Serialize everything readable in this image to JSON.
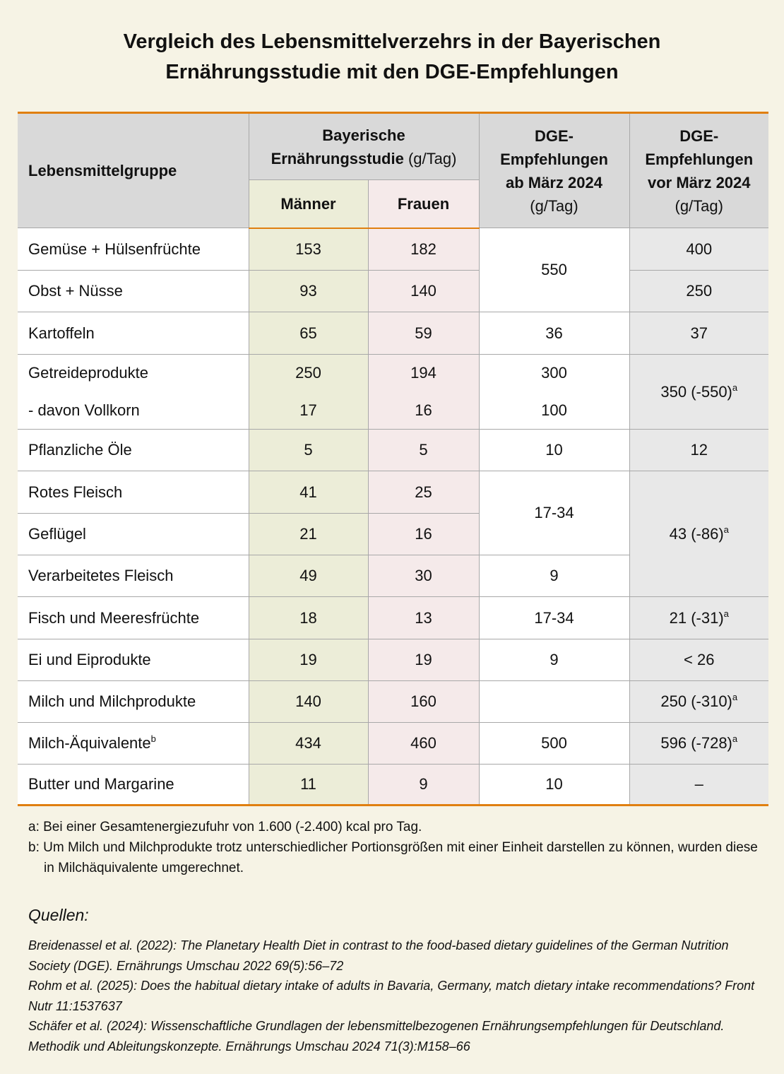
{
  "title_line1": "Vergleich des Lebensmittelverzehrs in der Bayerischen",
  "title_line2": "Ernährungsstudie mit den DGE-Empfehlungen",
  "colors": {
    "background": "#f6f3e5",
    "accent": "#e07f10",
    "header": "#d9d9d9",
    "maenner": "#ecedd8",
    "frauen": "#f5eaea",
    "dge_vor": "#e8e8e8"
  },
  "header": {
    "group": "Lebensmittelgruppe",
    "study_line1": "Bayerische",
    "study_line2": "Ernährungsstudie",
    "study_unit": "(g/Tag)",
    "maenner": "Männer",
    "frauen": "Frauen",
    "dge_ab_1": "DGE-",
    "dge_ab_2": "Empfehlungen",
    "dge_ab_3": "ab März 2024",
    "dge_ab_unit": "(g/Tag)",
    "dge_vor_1": "DGE-",
    "dge_vor_2": "Empfehlungen",
    "dge_vor_3": "vor März 2024",
    "dge_vor_unit": "(g/Tag)"
  },
  "rows": [
    {
      "label": "Gemüse + Hülsenfrüchte",
      "m": "153",
      "f": "182",
      "ab": "550",
      "vor": "400"
    },
    {
      "label": "Obst + Nüsse",
      "m": "93",
      "f": "140",
      "vor": "250"
    },
    {
      "label": "Kartoffeln",
      "m": "65",
      "f": "59",
      "ab": "36",
      "vor": "37"
    },
    {
      "label": "Getreideprodukte",
      "m": "250",
      "f": "194",
      "ab": "300",
      "vor": "350 (-550)",
      "vor_sup": "a"
    },
    {
      "label": "- davon Vollkorn",
      "m": "17",
      "f": "16",
      "ab": "100"
    },
    {
      "label": "Pflanzliche Öle",
      "m": "5",
      "f": "5",
      "ab": "10",
      "vor": "12"
    },
    {
      "label": "Rotes Fleisch",
      "m": "41",
      "f": "25",
      "ab": "17-34",
      "vor": "43 (-86)",
      "vor_sup": "a"
    },
    {
      "label": "Geflügel",
      "m": "21",
      "f": "16"
    },
    {
      "label": "Verarbeitetes Fleisch",
      "m": "49",
      "f": "30",
      "ab": "9"
    },
    {
      "label": "Fisch und Meeresfrüchte",
      "m": "18",
      "f": "13",
      "ab": "17-34",
      "vor": "21 (-31)",
      "vor_sup": "a"
    },
    {
      "label": "Ei und Eiprodukte",
      "m": "19",
      "f": "19",
      "ab": "9",
      "vor": "< 26"
    },
    {
      "label": "Milch und Milchprodukte",
      "m": "140",
      "f": "160",
      "ab": "",
      "vor": "250 (-310)",
      "vor_sup": "a"
    },
    {
      "label": "Milch-Äquivalente",
      "label_sup": "b",
      "m": "434",
      "f": "460",
      "ab": "500",
      "vor": "596 (-728)",
      "vor_sup": "a"
    },
    {
      "label": "Butter und Margarine",
      "m": "11",
      "f": "9",
      "ab": "10",
      "vor": "–"
    }
  ],
  "footnotes": {
    "a": "a: Bei einer Gesamtenergiezufuhr von 1.600 (-2.400) kcal pro Tag.",
    "b": "b: Um Milch und Milchprodukte trotz unterschiedlicher Portionsgrößen mit einer Einheit darstellen zu können, wurden diese in Milchäquivalente umgerechnet."
  },
  "sources": {
    "heading": "Quellen:",
    "items": [
      "Breidenassel et al. (2022): The Planetary Health Diet in contrast to the food-based dietary guidelines of the German Nutrition Society (DGE). Ernährungs Umschau 2022 69(5):56–72",
      "Rohm et al. (2025): Does the habitual dietary intake of adults in Bavaria, Germany, match dietary intake recommendations? Front Nutr 11:1537637",
      "Schäfer et al. (2024): Wissenschaftliche Grundlagen der lebensmittelbezogenen Ernährungsempfehlungen für Deutschland. Methodik und Ableitungskonzepte. Ernährungs Umschau 2024 71(3):M158–66"
    ]
  }
}
